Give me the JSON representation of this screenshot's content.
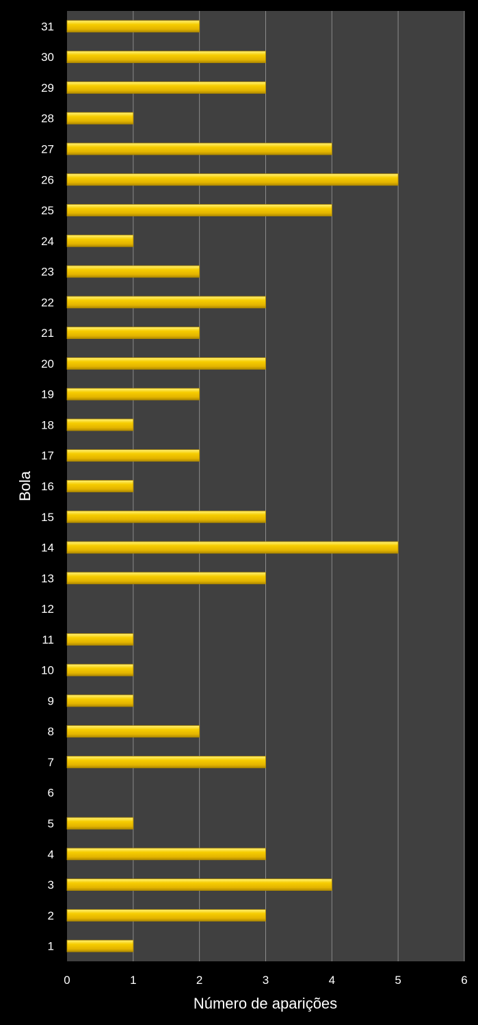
{
  "chart_data": {
    "type": "bar",
    "orientation": "horizontal",
    "xlabel": "Número de aparições",
    "ylabel": "Bola",
    "xlim": [
      0,
      6
    ],
    "xticks": [
      "0",
      "1",
      "2",
      "3",
      "4",
      "5",
      "6"
    ],
    "grid": "vertical",
    "categories": [
      "1",
      "2",
      "3",
      "4",
      "5",
      "6",
      "7",
      "8",
      "9",
      "10",
      "11",
      "12",
      "13",
      "14",
      "15",
      "16",
      "17",
      "18",
      "19",
      "20",
      "21",
      "22",
      "23",
      "24",
      "25",
      "26",
      "27",
      "28",
      "29",
      "30",
      "31"
    ],
    "values": [
      1,
      3,
      4,
      3,
      1,
      0,
      3,
      2,
      1,
      1,
      1,
      0,
      3,
      5,
      3,
      1,
      2,
      1,
      2,
      3,
      2,
      3,
      2,
      1,
      4,
      5,
      4,
      1,
      3,
      3,
      2
    ],
    "colors": {
      "page_background": "#000000",
      "plot_background": "#404040",
      "gridline": "#8c8c8c",
      "bar_fill": "#f6cc00",
      "bar_highlight": "#fff27a",
      "bar_shade": "#b08a00",
      "text": "#ffffff"
    }
  }
}
